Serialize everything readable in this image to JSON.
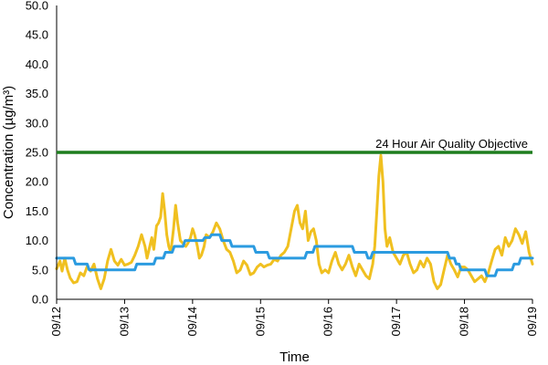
{
  "chart_data": {
    "type": "line",
    "title": "",
    "xlabel": "Time",
    "ylabel": "Concentration (µg/m³)",
    "ylim": [
      0,
      50
    ],
    "y_ticks": [
      "0.0",
      "5.0",
      "10.0",
      "15.0",
      "20.0",
      "25.0",
      "30.0",
      "35.0",
      "40.0",
      "45.0",
      "50.0"
    ],
    "xlim": [
      "09/12",
      "09/19"
    ],
    "x_ticks": [
      "09/12",
      "09/13",
      "09/14",
      "09/15",
      "09/16",
      "09/17",
      "09/18",
      "09/19"
    ],
    "grid": false,
    "legend": "none",
    "objective": {
      "label": "24 Hour Air Quality Objective",
      "value": 25,
      "color": "#1e7d1e"
    },
    "series": [
      {
        "key": "hourly",
        "color": "#f0c020",
        "points": [
          [
            0.0,
            5.2
          ],
          [
            0.05,
            6.5
          ],
          [
            0.08,
            4.8
          ],
          [
            0.12,
            7.0
          ],
          [
            0.16,
            5.0
          ],
          [
            0.2,
            3.6
          ],
          [
            0.25,
            2.8
          ],
          [
            0.3,
            3.0
          ],
          [
            0.35,
            4.5
          ],
          [
            0.4,
            4.0
          ],
          [
            0.45,
            5.6
          ],
          [
            0.5,
            4.8
          ],
          [
            0.55,
            6.0
          ],
          [
            0.6,
            3.5
          ],
          [
            0.65,
            1.8
          ],
          [
            0.7,
            3.5
          ],
          [
            0.75,
            6.5
          ],
          [
            0.8,
            8.5
          ],
          [
            0.85,
            6.5
          ],
          [
            0.9,
            5.8
          ],
          [
            0.95,
            6.8
          ],
          [
            1.0,
            5.8
          ],
          [
            1.05,
            6.0
          ],
          [
            1.1,
            6.3
          ],
          [
            1.15,
            7.5
          ],
          [
            1.2,
            9.0
          ],
          [
            1.25,
            11.0
          ],
          [
            1.3,
            9.0
          ],
          [
            1.33,
            7.0
          ],
          [
            1.37,
            9.0
          ],
          [
            1.4,
            10.5
          ],
          [
            1.43,
            8.5
          ],
          [
            1.47,
            12.5
          ],
          [
            1.5,
            13.0
          ],
          [
            1.53,
            14.0
          ],
          [
            1.56,
            18.0
          ],
          [
            1.59,
            15.0
          ],
          [
            1.62,
            11.0
          ],
          [
            1.65,
            9.0
          ],
          [
            1.68,
            8.0
          ],
          [
            1.72,
            12.0
          ],
          [
            1.75,
            16.0
          ],
          [
            1.78,
            13.0
          ],
          [
            1.82,
            10.0
          ],
          [
            1.86,
            9.5
          ],
          [
            1.9,
            9.0
          ],
          [
            1.93,
            9.5
          ],
          [
            1.97,
            10.5
          ],
          [
            2.0,
            12.0
          ],
          [
            2.03,
            11.0
          ],
          [
            2.07,
            9.0
          ],
          [
            2.1,
            7.0
          ],
          [
            2.13,
            7.5
          ],
          [
            2.17,
            9.0
          ],
          [
            2.2,
            11.0
          ],
          [
            2.25,
            10.5
          ],
          [
            2.3,
            11.5
          ],
          [
            2.35,
            13.0
          ],
          [
            2.4,
            12.0
          ],
          [
            2.45,
            10.0
          ],
          [
            2.5,
            8.5
          ],
          [
            2.55,
            8.0
          ],
          [
            2.6,
            6.5
          ],
          [
            2.65,
            4.5
          ],
          [
            2.7,
            5.0
          ],
          [
            2.75,
            6.5
          ],
          [
            2.8,
            5.8
          ],
          [
            2.85,
            4.2
          ],
          [
            2.9,
            4.5
          ],
          [
            2.95,
            5.5
          ],
          [
            3.0,
            6.0
          ],
          [
            3.05,
            5.5
          ],
          [
            3.1,
            5.8
          ],
          [
            3.15,
            6.0
          ],
          [
            3.2,
            6.8
          ],
          [
            3.25,
            6.5
          ],
          [
            3.3,
            7.5
          ],
          [
            3.35,
            8.0
          ],
          [
            3.4,
            9.0
          ],
          [
            3.45,
            12.0
          ],
          [
            3.5,
            15.0
          ],
          [
            3.54,
            16.0
          ],
          [
            3.58,
            13.0
          ],
          [
            3.62,
            12.0
          ],
          [
            3.66,
            15.0
          ],
          [
            3.7,
            10.0
          ],
          [
            3.74,
            11.5
          ],
          [
            3.78,
            12.0
          ],
          [
            3.82,
            10.0
          ],
          [
            3.86,
            6.0
          ],
          [
            3.9,
            4.5
          ],
          [
            3.95,
            5.0
          ],
          [
            4.0,
            4.5
          ],
          [
            4.05,
            6.5
          ],
          [
            4.1,
            8.0
          ],
          [
            4.15,
            6.0
          ],
          [
            4.2,
            5.0
          ],
          [
            4.25,
            6.0
          ],
          [
            4.3,
            7.5
          ],
          [
            4.35,
            5.5
          ],
          [
            4.4,
            4.0
          ],
          [
            4.45,
            6.0
          ],
          [
            4.5,
            5.0
          ],
          [
            4.55,
            4.0
          ],
          [
            4.6,
            3.5
          ],
          [
            4.65,
            6.0
          ],
          [
            4.68,
            9.0
          ],
          [
            4.71,
            15.0
          ],
          [
            4.74,
            21.0
          ],
          [
            4.77,
            24.5
          ],
          [
            4.8,
            20.0
          ],
          [
            4.83,
            12.0
          ],
          [
            4.86,
            9.0
          ],
          [
            4.9,
            10.5
          ],
          [
            4.95,
            8.0
          ],
          [
            5.0,
            7.0
          ],
          [
            5.05,
            6.0
          ],
          [
            5.1,
            7.5
          ],
          [
            5.15,
            8.0
          ],
          [
            5.2,
            6.0
          ],
          [
            5.25,
            4.5
          ],
          [
            5.3,
            5.0
          ],
          [
            5.35,
            6.5
          ],
          [
            5.4,
            5.5
          ],
          [
            5.45,
            7.0
          ],
          [
            5.5,
            6.0
          ],
          [
            5.55,
            3.0
          ],
          [
            5.6,
            1.8
          ],
          [
            5.65,
            2.5
          ],
          [
            5.7,
            5.0
          ],
          [
            5.75,
            7.5
          ],
          [
            5.8,
            6.0
          ],
          [
            5.85,
            5.0
          ],
          [
            5.9,
            3.8
          ],
          [
            5.95,
            5.5
          ],
          [
            6.0,
            5.5
          ],
          [
            6.05,
            5.0
          ],
          [
            6.1,
            4.0
          ],
          [
            6.15,
            3.0
          ],
          [
            6.2,
            3.5
          ],
          [
            6.25,
            4.0
          ],
          [
            6.3,
            3.0
          ],
          [
            6.35,
            4.5
          ],
          [
            6.4,
            6.5
          ],
          [
            6.45,
            8.5
          ],
          [
            6.5,
            9.0
          ],
          [
            6.55,
            7.5
          ],
          [
            6.6,
            10.5
          ],
          [
            6.65,
            9.0
          ],
          [
            6.7,
            10.0
          ],
          [
            6.75,
            12.0
          ],
          [
            6.8,
            11.0
          ],
          [
            6.85,
            9.5
          ],
          [
            6.9,
            11.5
          ],
          [
            6.95,
            8.0
          ],
          [
            7.0,
            6.0
          ]
        ]
      },
      {
        "key": "rolling",
        "color": "#2b9be0",
        "points": [
          [
            0.0,
            7.0
          ],
          [
            0.25,
            7.0
          ],
          [
            0.28,
            6.0
          ],
          [
            0.45,
            6.0
          ],
          [
            0.48,
            5.0
          ],
          [
            1.15,
            5.0
          ],
          [
            1.18,
            6.0
          ],
          [
            1.43,
            6.0
          ],
          [
            1.46,
            7.0
          ],
          [
            1.57,
            7.0
          ],
          [
            1.6,
            8.0
          ],
          [
            1.7,
            8.0
          ],
          [
            1.73,
            9.0
          ],
          [
            1.86,
            9.0
          ],
          [
            1.89,
            10.0
          ],
          [
            2.15,
            10.0
          ],
          [
            2.18,
            10.5
          ],
          [
            2.25,
            10.5
          ],
          [
            2.28,
            11.0
          ],
          [
            2.4,
            11.0
          ],
          [
            2.43,
            10.0
          ],
          [
            2.55,
            10.0
          ],
          [
            2.58,
            9.0
          ],
          [
            2.9,
            9.0
          ],
          [
            2.93,
            8.0
          ],
          [
            3.1,
            8.0
          ],
          [
            3.13,
            7.0
          ],
          [
            3.65,
            7.0
          ],
          [
            3.68,
            8.0
          ],
          [
            3.77,
            8.0
          ],
          [
            3.8,
            9.0
          ],
          [
            4.35,
            9.0
          ],
          [
            4.38,
            8.0
          ],
          [
            4.55,
            8.0
          ],
          [
            4.58,
            7.0
          ],
          [
            4.62,
            7.0
          ],
          [
            4.65,
            8.0
          ],
          [
            5.75,
            8.0
          ],
          [
            5.78,
            7.0
          ],
          [
            5.85,
            7.0
          ],
          [
            5.88,
            6.0
          ],
          [
            5.92,
            6.0
          ],
          [
            5.95,
            5.0
          ],
          [
            6.3,
            5.0
          ],
          [
            6.33,
            4.0
          ],
          [
            6.45,
            4.0
          ],
          [
            6.48,
            5.0
          ],
          [
            6.7,
            5.0
          ],
          [
            6.73,
            6.0
          ],
          [
            6.8,
            6.0
          ],
          [
            6.83,
            7.0
          ],
          [
            7.0,
            7.0
          ]
        ]
      }
    ]
  }
}
